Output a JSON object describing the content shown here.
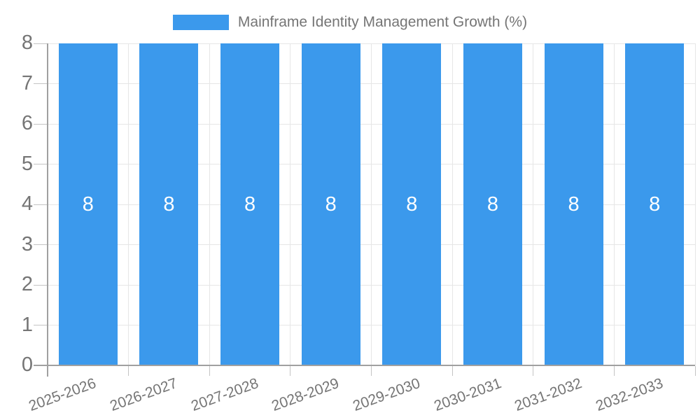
{
  "chart_data": {
    "type": "bar",
    "title": "Mainframe Identity Management Growth (%)",
    "legend_position": "top",
    "categories": [
      "2025-2026",
      "2026-2027",
      "2027-2028",
      "2028-2029",
      "2029-2030",
      "2030-2031",
      "2031-2032",
      "2032-2033"
    ],
    "series": [
      {
        "name": "Mainframe Identity Management Growth (%)",
        "values": [
          8,
          8,
          8,
          8,
          8,
          8,
          8,
          8
        ]
      }
    ],
    "bar_value_labels": [
      "8",
      "8",
      "8",
      "8",
      "8",
      "8",
      "8",
      "8"
    ],
    "xlabel": "",
    "ylabel": "",
    "ylim": [
      0,
      8
    ],
    "yticks": [
      0,
      1,
      2,
      3,
      4,
      5,
      6,
      7,
      8
    ],
    "grid": true,
    "x_label_rotation_deg": -20,
    "colors": {
      "bar": "#3B99EC",
      "axis_text": "#757575",
      "legend_text": "#757575",
      "bar_value_text": "#FFFFFF",
      "gridline": "#E6E6E6",
      "axis_line": "#A0A0A0",
      "tick": "#C4C4C4",
      "background": "#FFFFFF"
    }
  }
}
